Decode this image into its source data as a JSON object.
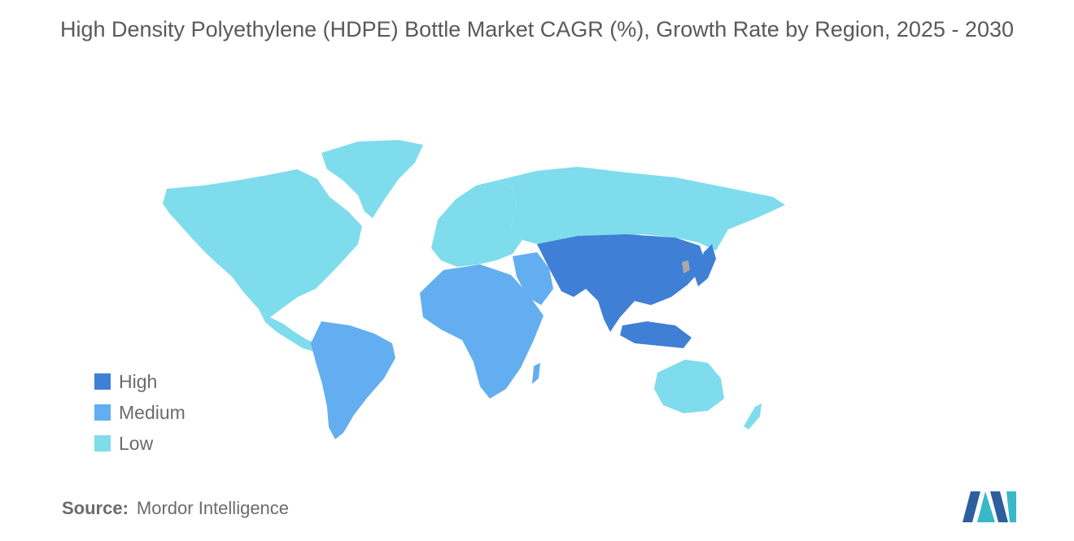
{
  "title": "High Density Polyethylene (HDPE) Bottle Market CAGR (%), Growth Rate by Region, 2025 - 2030",
  "legend": [
    {
      "label": "High",
      "color": "#3f7fd6"
    },
    {
      "label": "Medium",
      "color": "#62aef0"
    },
    {
      "label": "Low",
      "color": "#7fdcec"
    }
  ],
  "regions": [
    {
      "name": "North America",
      "level": "Low"
    },
    {
      "name": "Europe",
      "level": "Low"
    },
    {
      "name": "Russia & Central Asia",
      "level": "Low"
    },
    {
      "name": "Australia & New Zealand",
      "level": "Low"
    },
    {
      "name": "South America",
      "level": "Medium"
    },
    {
      "name": "Africa",
      "level": "Medium"
    },
    {
      "name": "Middle East",
      "level": "Medium"
    },
    {
      "name": "Asia-Pacific",
      "level": "High"
    }
  ],
  "no_data_color": "#a8a8a8",
  "source": {
    "label": "Source:",
    "value": "Mordor Intelligence"
  },
  "logo": {
    "icon": "mordor-intelligence-logo",
    "colors": [
      "#2d5f9e",
      "#39b8c9"
    ]
  }
}
